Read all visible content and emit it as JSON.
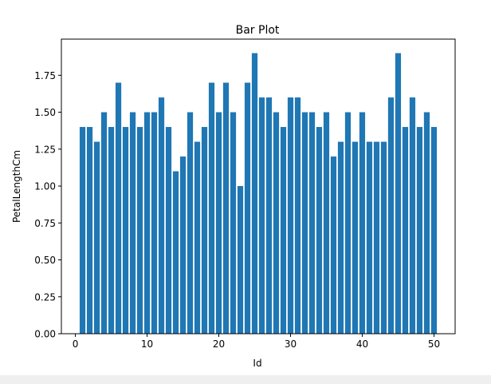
{
  "chart_data": {
    "type": "bar",
    "title": "Bar Plot",
    "xlabel": "Id",
    "ylabel": "PetalLengthCm",
    "x": [
      1,
      2,
      3,
      4,
      5,
      6,
      7,
      8,
      9,
      10,
      11,
      12,
      13,
      14,
      15,
      16,
      17,
      18,
      19,
      20,
      21,
      22,
      23,
      24,
      25,
      26,
      27,
      28,
      29,
      30,
      31,
      32,
      33,
      34,
      35,
      36,
      37,
      38,
      39,
      40,
      41,
      42,
      43,
      44,
      45,
      46,
      47,
      48,
      49,
      50
    ],
    "values": [
      1.4,
      1.4,
      1.3,
      1.5,
      1.4,
      1.7,
      1.4,
      1.5,
      1.4,
      1.5,
      1.5,
      1.6,
      1.4,
      1.1,
      1.2,
      1.5,
      1.3,
      1.4,
      1.7,
      1.5,
      1.7,
      1.5,
      1.0,
      1.7,
      1.9,
      1.6,
      1.6,
      1.5,
      1.4,
      1.6,
      1.6,
      1.5,
      1.5,
      1.4,
      1.5,
      1.2,
      1.3,
      1.5,
      1.3,
      1.5,
      1.3,
      1.3,
      1.3,
      1.6,
      1.9,
      1.4,
      1.6,
      1.4,
      1.5,
      1.4
    ],
    "xlim": [
      -1.95,
      52.95
    ],
    "ylim": [
      0,
      1.995
    ],
    "xticks": [
      0,
      10,
      20,
      30,
      40,
      50
    ],
    "xtick_labels": [
      "0",
      "10",
      "20",
      "30",
      "40",
      "50"
    ],
    "yticks": [
      0,
      0.25,
      0.5,
      0.75,
      1.0,
      1.25,
      1.5,
      1.75
    ],
    "ytick_labels": [
      "0.00",
      "0.25",
      "0.50",
      "0.75",
      "1.00",
      "1.25",
      "1.50",
      "1.75"
    ],
    "bar_color": "#1f77b4",
    "grid": false
  }
}
